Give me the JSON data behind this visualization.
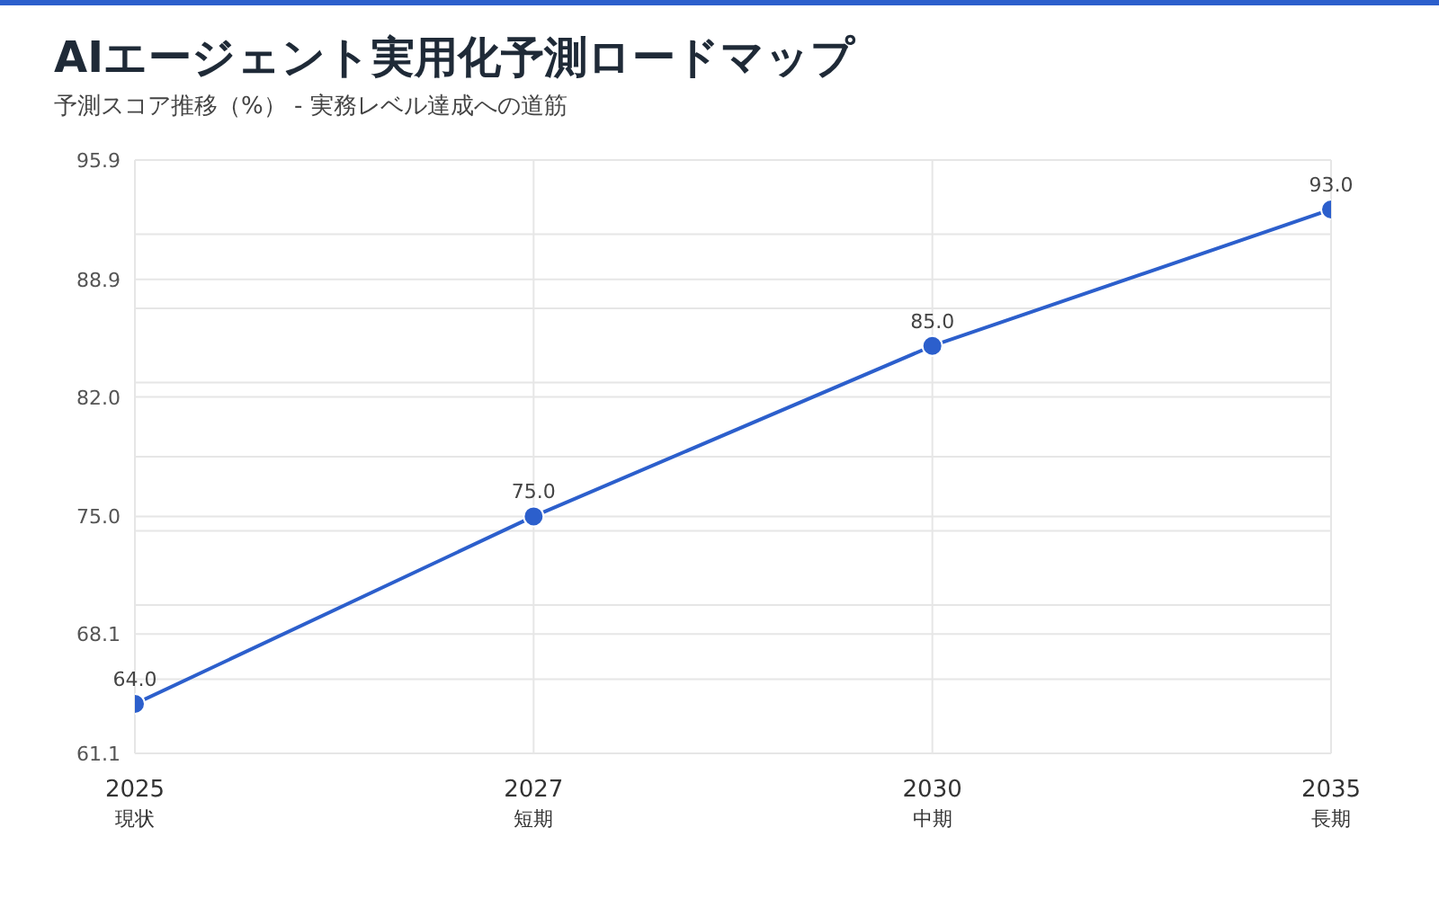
{
  "chart_data": {
    "type": "line",
    "title": "AIエージェント実用化予測ロードマップ",
    "subtitle": "予測スコア推移（%） - 実務レベル達成への道筋",
    "categories": [
      "2025\n現状",
      "2027\n短期",
      "2030\n中期",
      "2035\n長期"
    ],
    "series": [
      {
        "color": "#2c5fcc",
        "values": [
          64.0,
          75.0,
          85.0,
          93.0
        ],
        "value_labels": [
          "64.0",
          "75.0",
          "85.0",
          "93.0"
        ]
      }
    ],
    "ylim": [
      61.1,
      95.9
    ],
    "yticks": [
      {
        "value": 61.1,
        "label": "61.1"
      },
      {
        "value": 65.45,
        "label": null
      },
      {
        "value": 68.1,
        "label": "68.1"
      },
      {
        "value": 69.8,
        "label": null
      },
      {
        "value": 74.15,
        "label": null
      },
      {
        "value": 75,
        "label": "75.0"
      },
      {
        "value": 78.5,
        "label": null
      },
      {
        "value": 82,
        "label": "82.0"
      },
      {
        "value": 82.85,
        "label": null
      },
      {
        "value": 87.2,
        "label": null
      },
      {
        "value": 88.9,
        "label": "88.9"
      },
      {
        "value": 91.55,
        "label": null
      },
      {
        "value": 95.9,
        "label": "95.9"
      }
    ],
    "grid": true,
    "marker": "circle",
    "line_style": "solid"
  }
}
